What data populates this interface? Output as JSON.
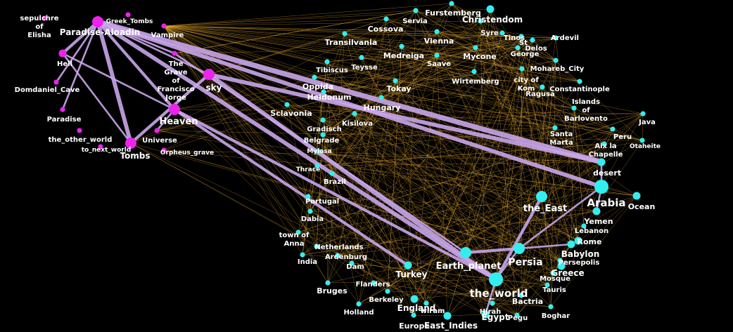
{
  "colors": {
    "background": "#000000",
    "other_world_node": "#ee22ee",
    "earth_node": "#33eef0",
    "thin_edge": "#e8a830",
    "strong_edge": "#c9a6ea",
    "label": "#ffffff"
  },
  "clusters": [
    "other_world",
    "earth"
  ],
  "nodes": [
    {
      "id": "sepulchre_of_elisha",
      "label": [
        "sepulchre",
        "of",
        "Elisha"
      ],
      "cluster": "other_world",
      "size": "s"
    },
    {
      "id": "paradise_aloadin",
      "label": [
        "Paradise-Aloadin"
      ],
      "cluster": "other_world",
      "size": "l"
    },
    {
      "id": "greek_tombs",
      "label": [
        "Greek_Tombs"
      ],
      "cluster": "other_world",
      "size": "s"
    },
    {
      "id": "vampire",
      "label": [
        "Vampire"
      ],
      "cluster": "other_world",
      "size": "s"
    },
    {
      "id": "hell",
      "label": [
        "Hell"
      ],
      "cluster": "other_world",
      "size": "m"
    },
    {
      "id": "grave_francisco_jorge",
      "label": [
        "The",
        "Grave",
        "of",
        "Francisco",
        "Jorge"
      ],
      "cluster": "other_world",
      "size": "s"
    },
    {
      "id": "sky",
      "label": [
        "sky"
      ],
      "cluster": "other_world",
      "size": "l"
    },
    {
      "id": "domdaniel_cave",
      "label": [
        "Domdaniel_Cave"
      ],
      "cluster": "other_world",
      "size": "s"
    },
    {
      "id": "heaven",
      "label": [
        "Heaven"
      ],
      "cluster": "other_world",
      "size": "l"
    },
    {
      "id": "paradise",
      "label": [
        "Paradise"
      ],
      "cluster": "other_world",
      "size": "s"
    },
    {
      "id": "the_other_world",
      "label": [
        "the_other_world"
      ],
      "cluster": "other_world",
      "size": "s"
    },
    {
      "id": "universe",
      "label": [
        "Universe"
      ],
      "cluster": "other_world",
      "size": "s"
    },
    {
      "id": "to_next_world",
      "label": [
        "to_next_world"
      ],
      "cluster": "other_world",
      "size": "s"
    },
    {
      "id": "tombs",
      "label": [
        "Tombs"
      ],
      "cluster": "other_world",
      "size": "l"
    },
    {
      "id": "orpheus_grave",
      "label": [
        "Orpheus_grave"
      ],
      "cluster": "other_world",
      "size": "s"
    },
    {
      "id": "cossova",
      "label": [
        "Cossova"
      ],
      "cluster": "earth",
      "size": "s"
    },
    {
      "id": "servia",
      "label": [
        "Servia"
      ],
      "cluster": "earth",
      "size": "s"
    },
    {
      "id": "furstemberg",
      "label": [
        "Furstemberg"
      ],
      "cluster": "earth",
      "size": "s"
    },
    {
      "id": "christendom",
      "label": [
        "Christendom"
      ],
      "cluster": "earth",
      "size": "m"
    },
    {
      "id": "syre",
      "label": [
        "Syre"
      ],
      "cluster": "earth",
      "size": "s"
    },
    {
      "id": "tinos",
      "label": [
        "Tinos"
      ],
      "cluster": "earth",
      "size": "s"
    },
    {
      "id": "st",
      "label": [
        "St"
      ],
      "cluster": "earth",
      "size": "s"
    },
    {
      "id": "delos",
      "label": [
        "Delos"
      ],
      "cluster": "earth",
      "size": "s"
    },
    {
      "id": "ardevil",
      "label": [
        "Ardevil"
      ],
      "cluster": "earth",
      "size": "s"
    },
    {
      "id": "george",
      "label": [
        "George"
      ],
      "cluster": "earth",
      "size": "s"
    },
    {
      "id": "transilvania",
      "label": [
        "Transilvania"
      ],
      "cluster": "earth",
      "size": "s"
    },
    {
      "id": "vienna",
      "label": [
        "Vienna"
      ],
      "cluster": "earth",
      "size": "s"
    },
    {
      "id": "medreiga",
      "label": [
        "Medreiga"
      ],
      "cluster": "earth",
      "size": "s"
    },
    {
      "id": "mycone",
      "label": [
        "Mycone"
      ],
      "cluster": "earth",
      "size": "s"
    },
    {
      "id": "teysse",
      "label": [
        "Teysse"
      ],
      "cluster": "earth",
      "size": "s"
    },
    {
      "id": "saave",
      "label": [
        "Saave"
      ],
      "cluster": "earth",
      "size": "s"
    },
    {
      "id": "tibiscus",
      "label": [
        "Tibiscus"
      ],
      "cluster": "earth",
      "size": "s"
    },
    {
      "id": "mohareb_city",
      "label": [
        "Mohareb_City"
      ],
      "cluster": "earth",
      "size": "s"
    },
    {
      "id": "city_of_kom",
      "label": [
        "city of",
        "Kom"
      ],
      "cluster": "earth",
      "size": "s"
    },
    {
      "id": "ragusa",
      "label": [
        "Ragusa"
      ],
      "cluster": "earth",
      "size": "s"
    },
    {
      "id": "wirtemberg",
      "label": [
        "Wirtemberg"
      ],
      "cluster": "earth",
      "size": "s"
    },
    {
      "id": "constantinople",
      "label": [
        "Constantinople"
      ],
      "cluster": "earth",
      "size": "s"
    },
    {
      "id": "oppida",
      "label": [
        "Oppida"
      ],
      "cluster": "earth",
      "size": "s"
    },
    {
      "id": "tokay",
      "label": [
        "Tokay"
      ],
      "cluster": "earth",
      "size": "s"
    },
    {
      "id": "heidonum",
      "label": [
        "Heidonum"
      ],
      "cluster": "earth",
      "size": "s"
    },
    {
      "id": "islands_of_barlovento",
      "label": [
        "Islands",
        "of",
        "Barlovento"
      ],
      "cluster": "earth",
      "size": "s"
    },
    {
      "id": "hungary",
      "label": [
        "Hungary"
      ],
      "cluster": "earth",
      "size": "s"
    },
    {
      "id": "sclavonia",
      "label": [
        "Sclavonia"
      ],
      "cluster": "earth",
      "size": "s"
    },
    {
      "id": "kisilova",
      "label": [
        "Kisilova"
      ],
      "cluster": "earth",
      "size": "s"
    },
    {
      "id": "java",
      "label": [
        "Java"
      ],
      "cluster": "earth",
      "size": "s"
    },
    {
      "id": "gradisch",
      "label": [
        "Gradisch"
      ],
      "cluster": "earth",
      "size": "s"
    },
    {
      "id": "santa_marta",
      "label": [
        "Santa",
        "Marta"
      ],
      "cluster": "earth",
      "size": "s"
    },
    {
      "id": "peru",
      "label": [
        "Peru"
      ],
      "cluster": "earth",
      "size": "s"
    },
    {
      "id": "belgrade",
      "label": [
        "Belgrade"
      ],
      "cluster": "earth",
      "size": "s"
    },
    {
      "id": "aix_la_chapelle",
      "label": [
        "Aix la",
        "Chapelle"
      ],
      "cluster": "earth",
      "size": "s"
    },
    {
      "id": "otaheite",
      "label": [
        "Otaheite"
      ],
      "cluster": "earth",
      "size": "s"
    },
    {
      "id": "mylasa",
      "label": [
        "Mylasa"
      ],
      "cluster": "earth",
      "size": "s"
    },
    {
      "id": "desert",
      "label": [
        "desert"
      ],
      "cluster": "earth",
      "size": "m"
    },
    {
      "id": "thrace",
      "label": [
        "Thrace"
      ],
      "cluster": "earth",
      "size": "s"
    },
    {
      "id": "brazil",
      "label": [
        "Brazil"
      ],
      "cluster": "earth",
      "size": "s"
    },
    {
      "id": "arabia",
      "label": [
        "Arabia"
      ],
      "cluster": "earth",
      "size": "xl"
    },
    {
      "id": "the_east",
      "label": [
        "the_East"
      ],
      "cluster": "earth",
      "size": "l"
    },
    {
      "id": "ocean",
      "label": [
        "Ocean"
      ],
      "cluster": "earth",
      "size": "m"
    },
    {
      "id": "portugal",
      "label": [
        "Portugal"
      ],
      "cluster": "earth",
      "size": "s"
    },
    {
      "id": "dabia",
      "label": [
        "Dabia"
      ],
      "cluster": "earth",
      "size": "s"
    },
    {
      "id": "yemen",
      "label": [
        "Yemen"
      ],
      "cluster": "earth",
      "size": "m"
    },
    {
      "id": "lebanon",
      "label": [
        "Lebanon"
      ],
      "cluster": "earth",
      "size": "s"
    },
    {
      "id": "town_of_anna",
      "label": [
        "town of",
        "Anna"
      ],
      "cluster": "earth",
      "size": "s"
    },
    {
      "id": "rome",
      "label": [
        "Rome"
      ],
      "cluster": "earth",
      "size": "m"
    },
    {
      "id": "netherlands",
      "label": [
        "Netherlands"
      ],
      "cluster": "earth",
      "size": "s"
    },
    {
      "id": "babylon",
      "label": [
        "Babylon"
      ],
      "cluster": "earth",
      "size": "m"
    },
    {
      "id": "earth_planet",
      "label": [
        "Earth_planet"
      ],
      "cluster": "earth",
      "size": "l"
    },
    {
      "id": "persia",
      "label": [
        "Persia"
      ],
      "cluster": "earth",
      "size": "l"
    },
    {
      "id": "india",
      "label": [
        "India"
      ],
      "cluster": "earth",
      "size": "s"
    },
    {
      "id": "ardenburg",
      "label": [
        "Ardenburg"
      ],
      "cluster": "earth",
      "size": "s"
    },
    {
      "id": "persepolis",
      "label": [
        "Persepolis"
      ],
      "cluster": "earth",
      "size": "s"
    },
    {
      "id": "dam",
      "label": [
        "Dam"
      ],
      "cluster": "earth",
      "size": "s"
    },
    {
      "id": "greece",
      "label": [
        "Greece"
      ],
      "cluster": "earth",
      "size": "m"
    },
    {
      "id": "turkey",
      "label": [
        "Turkey"
      ],
      "cluster": "earth",
      "size": "m"
    },
    {
      "id": "mosque",
      "label": [
        "Mosque"
      ],
      "cluster": "earth",
      "size": "s"
    },
    {
      "id": "flanders",
      "label": [
        "Flanders"
      ],
      "cluster": "earth",
      "size": "s"
    },
    {
      "id": "bruges",
      "label": [
        "Bruges"
      ],
      "cluster": "earth",
      "size": "s"
    },
    {
      "id": "the_world",
      "label": [
        "the_world"
      ],
      "cluster": "earth",
      "size": "xl"
    },
    {
      "id": "tauris",
      "label": [
        "Tauris"
      ],
      "cluster": "earth",
      "size": "s"
    },
    {
      "id": "berkeley",
      "label": [
        "Berkeley"
      ],
      "cluster": "earth",
      "size": "s"
    },
    {
      "id": "bactria",
      "label": [
        "Bactria"
      ],
      "cluster": "earth",
      "size": "s"
    },
    {
      "id": "england",
      "label": [
        "England"
      ],
      "cluster": "earth",
      "size": "m"
    },
    {
      "id": "wiram",
      "label": [
        "wiram"
      ],
      "cluster": "earth",
      "size": "s"
    },
    {
      "id": "holland",
      "label": [
        "Holland"
      ],
      "cluster": "earth",
      "size": "s"
    },
    {
      "id": "hirah",
      "label": [
        "Hirah"
      ],
      "cluster": "earth",
      "size": "s"
    },
    {
      "id": "boghar",
      "label": [
        "Boghar"
      ],
      "cluster": "earth",
      "size": "s"
    },
    {
      "id": "egypt",
      "label": [
        "Egypt"
      ],
      "cluster": "earth",
      "size": "m"
    },
    {
      "id": "pegu",
      "label": [
        "Pegu"
      ],
      "cluster": "earth",
      "size": "s"
    },
    {
      "id": "europe",
      "label": [
        "Europe"
      ],
      "cluster": "earth",
      "size": "s"
    },
    {
      "id": "east_indies",
      "label": [
        "East_Indies"
      ],
      "cluster": "earth",
      "size": "m"
    }
  ],
  "strong_edges": [
    {
      "source": "paradise_aloadin",
      "target": "tombs",
      "weight": 3
    },
    {
      "source": "paradise_aloadin",
      "target": "hell",
      "weight": 2
    },
    {
      "source": "paradise_aloadin",
      "target": "heaven",
      "weight": 2
    },
    {
      "source": "paradise_aloadin",
      "target": "desert",
      "weight": 4
    },
    {
      "source": "paradise_aloadin",
      "target": "arabia",
      "weight": 3
    },
    {
      "source": "paradise_aloadin",
      "target": "the_world",
      "weight": 3
    },
    {
      "source": "paradise_aloadin",
      "target": "sky",
      "weight": 1
    },
    {
      "source": "paradise_aloadin",
      "target": "domdaniel_cave",
      "weight": 1
    },
    {
      "source": "paradise_aloadin",
      "target": "paradise",
      "weight": 1
    },
    {
      "source": "hell",
      "target": "tombs",
      "weight": 1
    },
    {
      "source": "hell",
      "target": "heaven",
      "weight": 1
    },
    {
      "source": "tombs",
      "target": "sky",
      "weight": 2
    },
    {
      "source": "heaven",
      "target": "universe",
      "weight": 1
    },
    {
      "source": "sky",
      "target": "desert",
      "weight": 3
    },
    {
      "source": "sky",
      "target": "the_world",
      "weight": 3
    },
    {
      "source": "heaven",
      "target": "the_world",
      "weight": 2
    },
    {
      "source": "heaven",
      "target": "turkey",
      "weight": 2
    },
    {
      "source": "earth_planet",
      "target": "persia",
      "weight": 2
    },
    {
      "source": "the_east",
      "target": "the_world",
      "weight": 2
    },
    {
      "source": "the_world",
      "target": "persia",
      "weight": 1
    },
    {
      "source": "arabia",
      "target": "persia",
      "weight": 1
    },
    {
      "source": "arabia",
      "target": "desert",
      "weight": 1
    },
    {
      "source": "arabia",
      "target": "yemen",
      "weight": 1
    },
    {
      "source": "persia",
      "target": "babylon",
      "weight": 1
    },
    {
      "source": "the_world",
      "target": "egypt",
      "weight": 1
    },
    {
      "source": "grave_francisco_jorge",
      "target": "earth_planet",
      "weight": 1
    },
    {
      "source": "paradise_aloadin",
      "target": "grave_francisco_jorge",
      "weight": 1
    }
  ]
}
